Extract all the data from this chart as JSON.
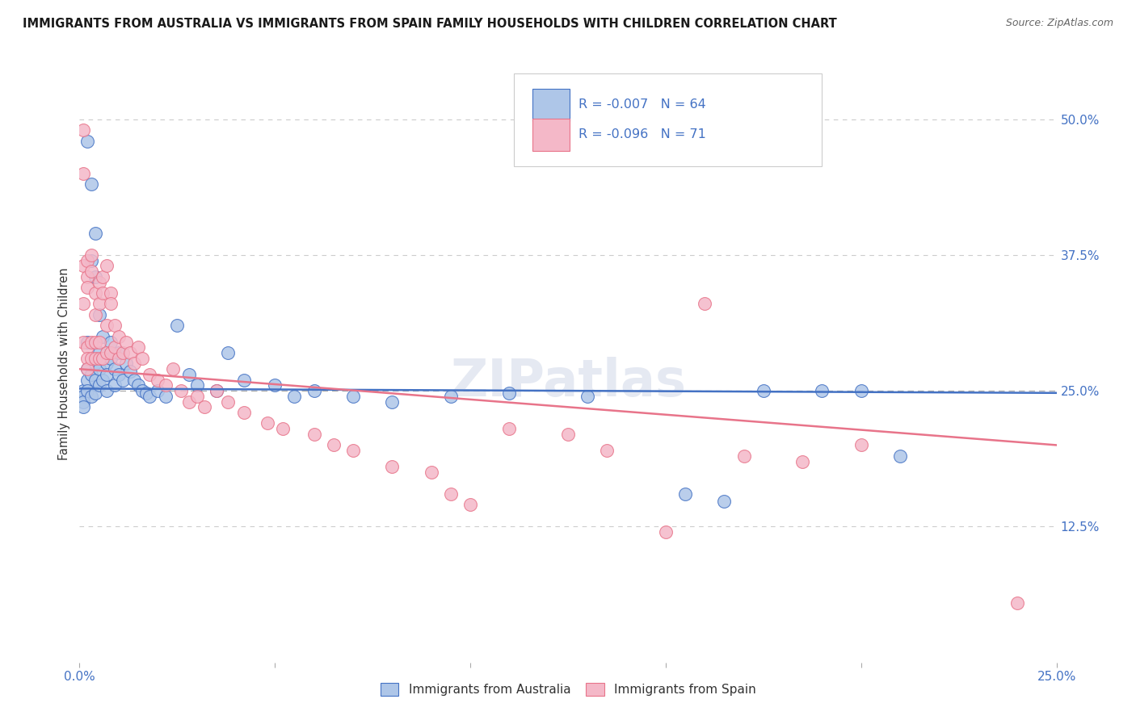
{
  "title": "IMMIGRANTS FROM AUSTRALIA VS IMMIGRANTS FROM SPAIN FAMILY HOUSEHOLDS WITH CHILDREN CORRELATION CHART",
  "source": "Source: ZipAtlas.com",
  "ylabel": "Family Households with Children",
  "xlim": [
    0.0,
    0.25
  ],
  "ylim": [
    0.0,
    0.55
  ],
  "y_ticks_right": [
    0.125,
    0.25,
    0.375,
    0.5
  ],
  "y_tick_labels_right": [
    "12.5%",
    "25.0%",
    "37.5%",
    "50.0%"
  ],
  "legend_line1": "R = -0.007   N = 64",
  "legend_line2": "R = -0.096   N = 71",
  "color_australia": "#aec6e8",
  "color_spain": "#f4b8c8",
  "line_color_australia": "#4472c4",
  "line_color_spain": "#e8748a",
  "watermark": "ZIPatlas",
  "australia_x": [
    0.001,
    0.001,
    0.001,
    0.001,
    0.002,
    0.002,
    0.002,
    0.002,
    0.002,
    0.003,
    0.003,
    0.003,
    0.003,
    0.004,
    0.004,
    0.004,
    0.004,
    0.004,
    0.005,
    0.005,
    0.005,
    0.005,
    0.006,
    0.006,
    0.006,
    0.007,
    0.007,
    0.007,
    0.008,
    0.008,
    0.009,
    0.009,
    0.01,
    0.01,
    0.011,
    0.012,
    0.013,
    0.014,
    0.015,
    0.016,
    0.017,
    0.018,
    0.02,
    0.022,
    0.025,
    0.028,
    0.03,
    0.035,
    0.038,
    0.042,
    0.05,
    0.055,
    0.06,
    0.07,
    0.08,
    0.095,
    0.11,
    0.13,
    0.155,
    0.165,
    0.175,
    0.19,
    0.2,
    0.21
  ],
  "australia_y": [
    0.25,
    0.245,
    0.24,
    0.235,
    0.48,
    0.295,
    0.27,
    0.26,
    0.25,
    0.44,
    0.37,
    0.265,
    0.245,
    0.395,
    0.355,
    0.275,
    0.26,
    0.248,
    0.32,
    0.285,
    0.27,
    0.255,
    0.3,
    0.28,
    0.26,
    0.275,
    0.265,
    0.25,
    0.295,
    0.28,
    0.27,
    0.255,
    0.285,
    0.265,
    0.26,
    0.275,
    0.268,
    0.26,
    0.255,
    0.25,
    0.248,
    0.245,
    0.25,
    0.245,
    0.31,
    0.265,
    0.255,
    0.25,
    0.285,
    0.26,
    0.255,
    0.245,
    0.25,
    0.245,
    0.24,
    0.245,
    0.248,
    0.245,
    0.155,
    0.148,
    0.25,
    0.25,
    0.25,
    0.19
  ],
  "spain_x": [
    0.001,
    0.001,
    0.001,
    0.001,
    0.001,
    0.002,
    0.002,
    0.002,
    0.002,
    0.002,
    0.002,
    0.003,
    0.003,
    0.003,
    0.003,
    0.004,
    0.004,
    0.004,
    0.004,
    0.005,
    0.005,
    0.005,
    0.005,
    0.006,
    0.006,
    0.006,
    0.007,
    0.007,
    0.007,
    0.008,
    0.008,
    0.008,
    0.009,
    0.009,
    0.01,
    0.01,
    0.011,
    0.012,
    0.013,
    0.014,
    0.015,
    0.016,
    0.018,
    0.02,
    0.022,
    0.024,
    0.026,
    0.028,
    0.03,
    0.032,
    0.035,
    0.038,
    0.042,
    0.048,
    0.052,
    0.06,
    0.065,
    0.07,
    0.08,
    0.09,
    0.095,
    0.1,
    0.11,
    0.125,
    0.135,
    0.15,
    0.16,
    0.17,
    0.185,
    0.2,
    0.24
  ],
  "spain_y": [
    0.49,
    0.45,
    0.365,
    0.33,
    0.295,
    0.37,
    0.355,
    0.345,
    0.29,
    0.28,
    0.27,
    0.375,
    0.36,
    0.295,
    0.28,
    0.34,
    0.32,
    0.295,
    0.28,
    0.35,
    0.33,
    0.295,
    0.28,
    0.355,
    0.34,
    0.28,
    0.365,
    0.31,
    0.285,
    0.34,
    0.33,
    0.285,
    0.31,
    0.29,
    0.3,
    0.28,
    0.285,
    0.295,
    0.285,
    0.275,
    0.29,
    0.28,
    0.265,
    0.26,
    0.255,
    0.27,
    0.25,
    0.24,
    0.245,
    0.235,
    0.25,
    0.24,
    0.23,
    0.22,
    0.215,
    0.21,
    0.2,
    0.195,
    0.18,
    0.175,
    0.155,
    0.145,
    0.215,
    0.21,
    0.195,
    0.12,
    0.33,
    0.19,
    0.185,
    0.2,
    0.055
  ],
  "aus_trend_x": [
    0.0,
    0.25
  ],
  "aus_trend_y": [
    0.252,
    0.248
  ],
  "spa_trend_x": [
    0.0,
    0.25
  ],
  "spa_trend_y": [
    0.27,
    0.2
  ]
}
